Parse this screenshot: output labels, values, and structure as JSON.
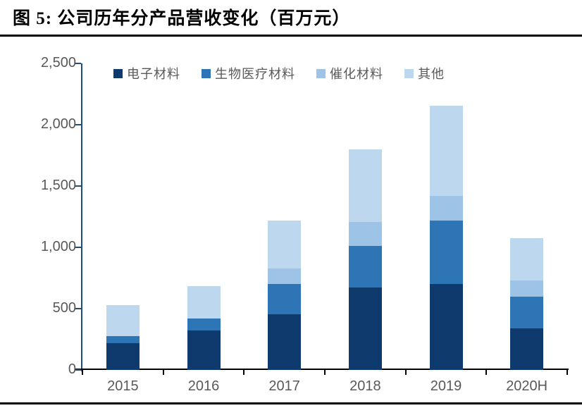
{
  "figure": {
    "title": "图 5:  公司历年分产品营收变化（百万元）"
  },
  "colors": {
    "axis_line": "#1F4E79",
    "x_axis_line": "#000000",
    "tick_label": "#595959",
    "rule": "#000000",
    "background": "#ffffff"
  },
  "chart_data": {
    "type": "bar",
    "stacked": true,
    "title": "公司历年分产品营收变化（百万元）",
    "unit": "百万元",
    "categories": [
      "2015",
      "2016",
      "2017",
      "2018",
      "2019",
      "2020H"
    ],
    "series": [
      {
        "name": "电子材料",
        "color": "#0E3A6E",
        "values": [
          220,
          320,
          455,
          670,
          700,
          340
        ]
      },
      {
        "name": "生物医疗材料",
        "color": "#2E75B6",
        "values": [
          55,
          100,
          245,
          340,
          520,
          260
        ]
      },
      {
        "name": "催化材料",
        "color": "#9DC3E6",
        "values": [
          0,
          0,
          130,
          195,
          200,
          130
        ]
      },
      {
        "name": "其他",
        "color": "#BDD7EE",
        "values": [
          255,
          265,
          390,
          595,
          735,
          345
        ]
      }
    ],
    "totals": [
      530,
      685,
      1220,
      1800,
      2155,
      1075
    ],
    "ylim": [
      0,
      2500
    ],
    "yticks": [
      0,
      500,
      1000,
      1500,
      2000,
      2500
    ],
    "ytick_labels": [
      "0",
      "500",
      "1,000",
      "1,500",
      "2,000",
      "2,500"
    ],
    "xlabel": "",
    "ylabel": "",
    "grid": false,
    "legend_position": "top"
  }
}
